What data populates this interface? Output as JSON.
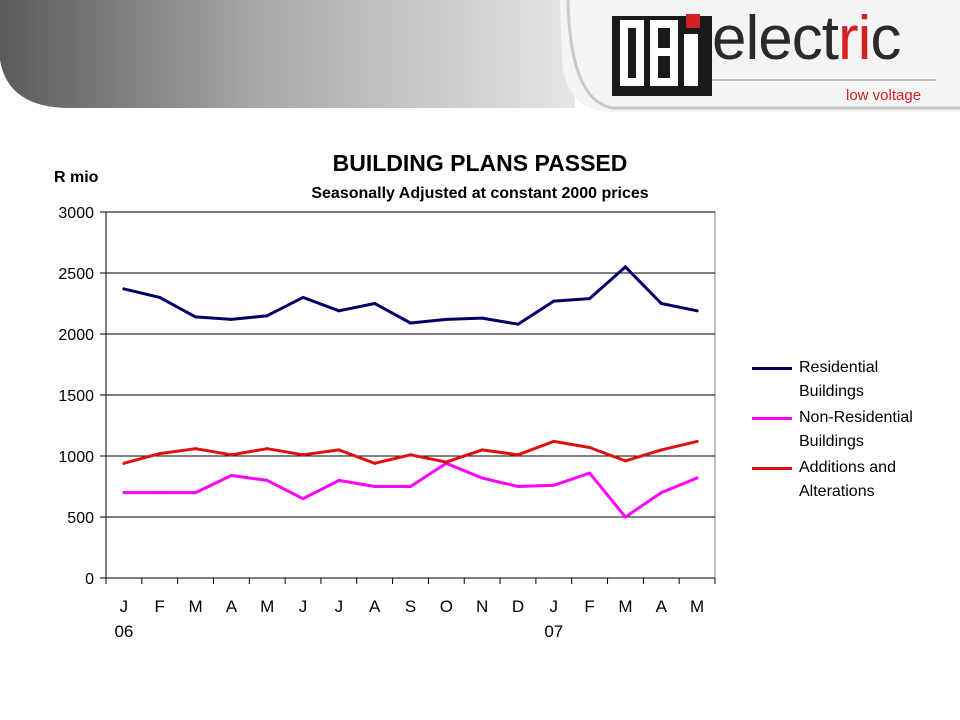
{
  "brand": {
    "logo_letters": "CBi",
    "name_main": "elect",
    "name_accent": "ri",
    "name_end": "c",
    "tagline": "low voltage",
    "accent_color": "#d42020"
  },
  "chart_data": {
    "type": "line",
    "title": "BUILDING PLANS PASSED",
    "subtitle": "Seasonally Adjusted at constant 2000 prices",
    "ylabel": "R mio",
    "xlabel": "",
    "ylim": [
      0,
      3000
    ],
    "yticks": [
      0,
      500,
      1000,
      1500,
      2000,
      2500,
      3000
    ],
    "grid": true,
    "legend_position": "right",
    "categories": [
      "J",
      "F",
      "M",
      "A",
      "M",
      "J",
      "J",
      "A",
      "S",
      "O",
      "N",
      "D",
      "J",
      "F",
      "M",
      "A",
      "M"
    ],
    "year_labels": [
      {
        "index": 0,
        "label": "06"
      },
      {
        "index": 12,
        "label": "07"
      }
    ],
    "series": [
      {
        "name": "Residential Buildings",
        "color": "#000066",
        "values": [
          2370,
          2300,
          2140,
          2120,
          2150,
          2300,
          2190,
          2250,
          2090,
          2120,
          2130,
          2080,
          2270,
          2290,
          2550,
          2250,
          2190
        ]
      },
      {
        "name": "Non-Residential Buildings",
        "color": "#ff00ff",
        "values": [
          700,
          700,
          700,
          840,
          800,
          650,
          800,
          750,
          750,
          940,
          820,
          750,
          760,
          860,
          500,
          700,
          820
        ]
      },
      {
        "name": "Additions and Alterations",
        "color": "#e01010",
        "values": [
          940,
          1020,
          1060,
          1010,
          1060,
          1010,
          1050,
          940,
          1010,
          950,
          1050,
          1010,
          1120,
          1070,
          960,
          1050,
          1120
        ]
      }
    ]
  }
}
